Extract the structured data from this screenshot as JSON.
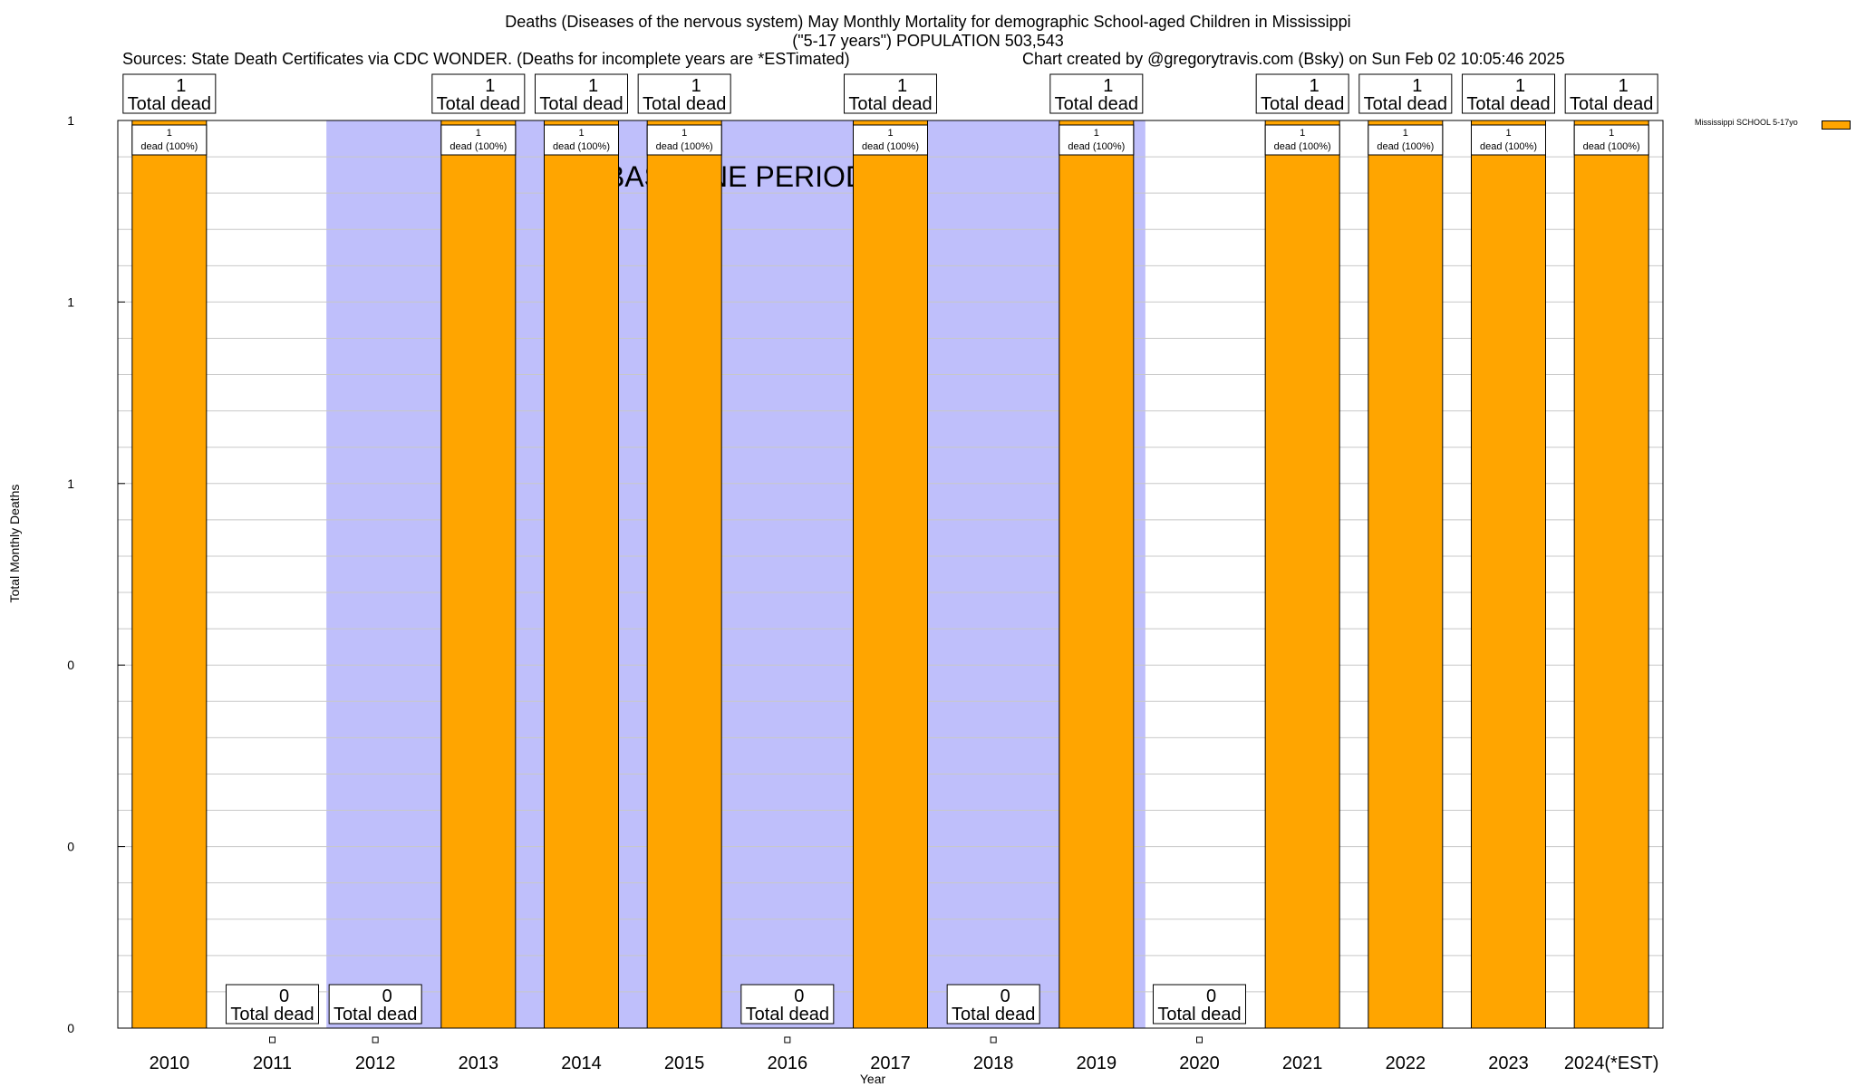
{
  "header": {
    "title_line1": "Deaths (Diseases of the nervous system) May Monthly Mortality for demographic School-aged Children in Mississippi",
    "title_line2": "(\"5-17 years\") POPULATION 503,543",
    "sources": "Sources: State Death Certificates via CDC WONDER. (Deaths for incomplete years are *ESTimated)",
    "credit": "Chart created by @gregorytravis.com (Bsky) on Sun Feb 02 10:05:46 2025"
  },
  "chart_data": {
    "type": "bar",
    "categories": [
      "2010",
      "2011",
      "2012",
      "2013",
      "2014",
      "2015",
      "2016",
      "2017",
      "2018",
      "2019",
      "2020",
      "2021",
      "2022",
      "2023",
      "2024(*EST)"
    ],
    "series": [
      {
        "name": "Mississippi SCHOOL 5-17yo",
        "values": [
          1,
          0,
          0,
          1,
          1,
          1,
          0,
          1,
          0,
          1,
          0,
          1,
          1,
          1,
          1
        ]
      }
    ],
    "total_label_text": "Total dead",
    "segment_label_text": "dead (100%)",
    "ylabel": "Total Monthly Deaths",
    "xlabel": "Year",
    "ylim": [
      0,
      1
    ],
    "y_tick_labels": [
      "0",
      "0",
      "0",
      "1",
      "1",
      "1"
    ],
    "baseline_period": {
      "label": "BASELINE PERIOD",
      "from": "2012",
      "to": "2019"
    },
    "grid": true,
    "legend_position": "top-right",
    "colors": {
      "bar": "#ffa500",
      "baseline_band": "#bfbffb",
      "grid": "#c8c8c8"
    }
  }
}
